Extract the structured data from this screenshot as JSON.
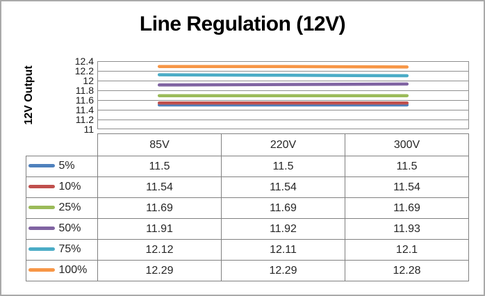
{
  "chart_data": {
    "type": "line",
    "title": "Line Regulation (12V)",
    "ylabel": "12V Output",
    "xlabel": "",
    "categories": [
      "85V",
      "220V",
      "300V"
    ],
    "series": [
      {
        "name": "5%",
        "color": "#4F81BD",
        "values": [
          11.5,
          11.5,
          11.5
        ]
      },
      {
        "name": "10%",
        "color": "#C0504D",
        "values": [
          11.54,
          11.54,
          11.54
        ]
      },
      {
        "name": "25%",
        "color": "#9BBB59",
        "values": [
          11.69,
          11.69,
          11.69
        ]
      },
      {
        "name": "50%",
        "color": "#8064A2",
        "values": [
          11.91,
          11.92,
          11.93
        ]
      },
      {
        "name": "75%",
        "color": "#4BACC6",
        "values": [
          12.12,
          12.11,
          12.1
        ]
      },
      {
        "name": "100%",
        "color": "#F79646",
        "values": [
          12.29,
          12.29,
          12.28
        ]
      }
    ],
    "y_axis": {
      "min": 11,
      "max": 12.4,
      "step": 0.2,
      "ticks": [
        12.4,
        12.2,
        12,
        11.8,
        11.6,
        11.4,
        11.2,
        11
      ]
    },
    "grid": true,
    "grid_color": "#8E8E8E",
    "legend_position": "data-table-left",
    "data_table_shown": true
  }
}
